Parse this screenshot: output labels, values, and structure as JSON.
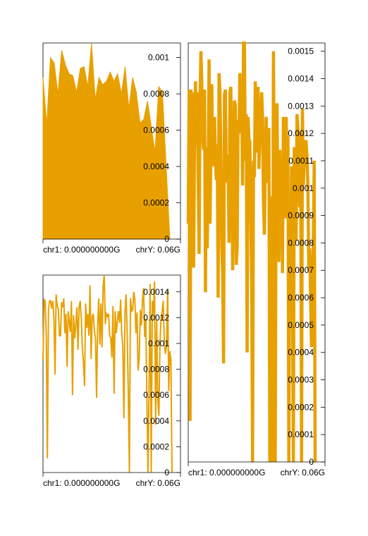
{
  "figure": {
    "background": "#ffffff",
    "series_color": "#e8a000",
    "axis_color": "#000000"
  },
  "chart_data": [
    {
      "type": "area",
      "id": "top-left",
      "xlabel": "",
      "ylabel": "",
      "x_ticks": [
        "chr1: 0.000000000G",
        "chrY: 0.06G"
      ],
      "y_ticks": [
        "0.001",
        "0.0008",
        "0.0006",
        "0.0004",
        "0.0002",
        "0"
      ],
      "ylim": [
        0,
        0.00108
      ],
      "y_axis_side": "right",
      "series": [
        {
          "color": "#e8a000",
          "style": "filled",
          "values": [
            0.00089,
            0.00063,
            0.001,
            0.00097,
            0.0008,
            0.00104,
            0.00096,
            0.00091,
            0.0009,
            0.00081,
            0.00094,
            0.00095,
            0.00084,
            0.00108,
            0.00077,
            0.00089,
            0.00085,
            0.00087,
            0.00092,
            0.00087,
            0.00091,
            0.0008,
            0.00095,
            0.00072,
            0.00089,
            0.00081,
            0.00064,
            0.00066,
            0.00076,
            0.00062,
            0.00048,
            0.00084,
            0.00081,
            0.0004,
            0.0
          ]
        }
      ]
    },
    {
      "type": "line",
      "id": "bottom-left",
      "xlabel": "",
      "ylabel": "",
      "x_ticks": [
        "chr1: 0.000000000G",
        "chrY: 0.06G"
      ],
      "y_ticks": [
        "0.0014",
        "0.0012",
        "0.001",
        "0.0008",
        "0.0006",
        "0.0004",
        "0.0002",
        "0"
      ],
      "ylim": [
        0,
        0.00153
      ],
      "y_axis_side": "right",
      "series": [
        {
          "color": "#e8a000",
          "style": "line",
          "values": [
            0.00087,
            0.00134,
            0.00133,
            0.00106,
            0.00011,
            0.00126,
            0.00133,
            0.00133,
            0.00127,
            0.00133,
            0.00119,
            0.00076,
            0.00138,
            0.00129,
            0.00127,
            0.00106,
            0.00106,
            0.00132,
            0.00128,
            0.00135,
            0.00108,
            0.00123,
            0.00082,
            0.00125,
            0.00117,
            0.00109,
            0.00133,
            0.0006,
            0.00122,
            0.00104,
            0.00114,
            0.00128,
            0.00095,
            0.00128,
            0.00133,
            0.0012,
            0.00096,
            0.00085,
            0.00067,
            0.00131,
            0.00112,
            0.00123,
            0.00106,
            0.00145,
            0.00088,
            0.00121,
            0.00123,
            0.0011,
            0.00104,
            0.00058,
            0.00114,
            0.00135,
            0.00099,
            0.00131,
            0.00097,
            0.00145,
            0.00153,
            0.00115,
            0.00123,
            0.00121,
            0.00123,
            0.00106,
            0.00104,
            0.00089,
            0.00129,
            0.00061,
            0.00125,
            0.00108,
            0.00117,
            0.00125,
            0.00116,
            0.00134,
            0.00108,
            0.00098,
            0.00042,
            0.00125,
            0.00138,
            0.00108,
            0.00062,
            0.0,
            0.00135,
            0.00125,
            0.00126,
            0.0014,
            0.00134,
            0.00108,
            0.00124,
            0.00079,
            0.00088,
            0.00126,
            0.00114,
            0.00134,
            0.00143,
            0.00105,
            0.00119,
            0.0006,
            0.0,
            0.00064,
            0.00146,
            0.0,
            0.00133,
            0.00123,
            0.00148,
            0.00037,
            0.00118,
            0.00054,
            0.00044,
            0.00101,
            0.0012,
            0.00125,
            0.00133,
            0.001,
            0.00092,
            0.00098,
            0.00142,
            0.00063,
            0.00094,
            0.00087,
            0.0
          ]
        }
      ]
    },
    {
      "type": "line",
      "id": "right",
      "xlabel": "",
      "ylabel": "",
      "x_ticks": [
        "chr1: 0.000000000G",
        "chrY: 0.06G"
      ],
      "y_ticks": [
        "0.0015",
        "0.0014",
        "0.0013",
        "0.0012",
        "0.0011",
        "0.001",
        "0.0009",
        "0.0008",
        "0.0007",
        "0.0006",
        "0.0005",
        "0.0004",
        "0.0003",
        "0.0002",
        "0.0001",
        "0"
      ],
      "ylim": [
        0,
        0.00153
      ],
      "y_axis_side": "right",
      "series": [
        {
          "color": "#e8a000",
          "style": "thick-line",
          "values": [
            0.00087,
            0.00136,
            0.00015,
            0.00136,
            0.00124,
            0.00135,
            0.00071,
            0.00119,
            0.00139,
            0.00116,
            0.00135,
            0.00103,
            0.00076,
            0.00133,
            0.0015,
            0.00138,
            0.00118,
            0.00114,
            0.00136,
            0.00062,
            0.00115,
            0.00078,
            0.00106,
            0.00147,
            0.00087,
            0.00112,
            0.00138,
            0.00112,
            0.00108,
            0.00126,
            0.0011,
            0.00103,
            0.00116,
            0.0006,
            0.00142,
            0.00135,
            0.00112,
            0.00078,
            0.00069,
            0.00036,
            0.00134,
            0.00136,
            0.00102,
            0.00112,
            0.0011,
            0.0008,
            0.00135,
            0.00137,
            0.00109,
            0.0007,
            0.00097,
            0.00132,
            0.0013,
            0.00072,
            0.00078,
            0.00125,
            0.0012,
            0.00142,
            0.0013,
            0.00131,
            0.00101,
            0.00153,
            0.00153,
            0.0011,
            0.00127,
            0.0004,
            0.00126,
            0.00118,
            0.00117,
            0.00092,
            0.00064,
            0.0,
            0.0011,
            0.00104,
            0.00139,
            0.00116,
            0.00113,
            0.00137,
            0.00107,
            0.00119,
            0.00124,
            0.00135,
            0.00126,
            0.00095,
            0.00083,
            0.00108,
            0.00126,
            0.00102,
            0.00109,
            0.00122,
            0.0,
            0.00097,
            0.00071,
            0.0,
            0.0015,
            0.001,
            0.0,
            0.00115,
            0.00131,
            0.00085,
            0.00073,
            0.00114,
            0.00097,
            0.001,
            0.00069,
            0.00126,
            0.00107,
            0.00089,
            0.00126,
            0.00112,
            0.00119,
            0.0,
            0.00085,
            0.00062,
            0.00108,
            0.00066,
            0.0,
            0.00115,
            0.00104,
            0.00081,
            0.00127,
            0.00122,
            0.0011,
            0.00093,
            0.0012,
            0.0,
            0.00129,
            0.00101,
            0.0011,
            0.00117,
            0.00117,
            0.00112,
            0.00101,
            0.0007,
            0.00078,
            0.0006,
            0.00042,
            0.00063,
            0.0008,
            0.0011,
            0.0
          ]
        }
      ]
    }
  ]
}
